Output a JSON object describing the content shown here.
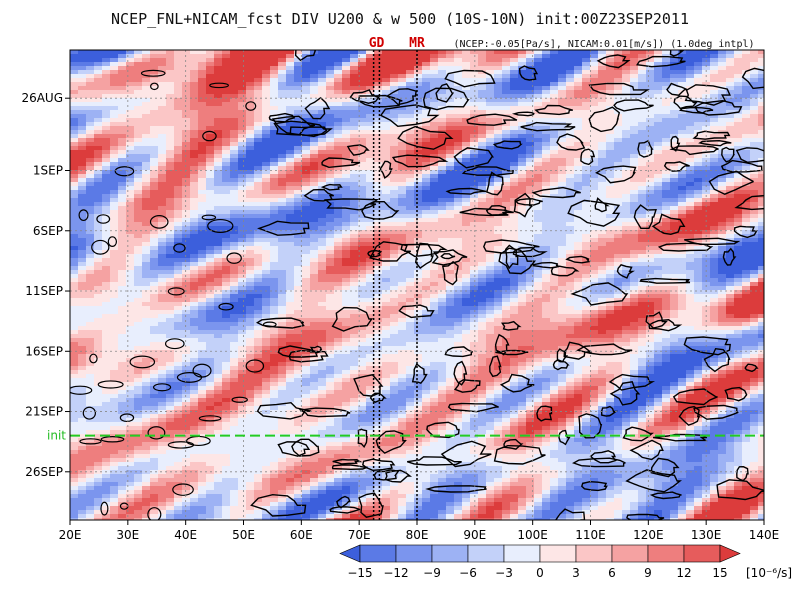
{
  "chart_data": {
    "type": "heatmap",
    "title": "NCEP_FNL+NICAM_fcst DIV U200 & w 500 (10S-10N) init:00Z23SEP2011",
    "subtitle": "(NCEP:-0.05[Pa/s], NICAM:0.01[m/s]) (1.0deg intpl)",
    "x_axis": {
      "range": [
        20,
        140
      ],
      "ticks": [
        "20E",
        "30E",
        "40E",
        "50E",
        "60E",
        "70E",
        "80E",
        "90E",
        "100E",
        "110E",
        "120E",
        "130E",
        "140E"
      ]
    },
    "y_axis": {
      "range": [
        "2011-08-22",
        "2011-09-30"
      ],
      "ticks": [
        {
          "label": "26AUG",
          "date": "2011-08-26"
        },
        {
          "label": "1SEP",
          "date": "2011-09-01"
        },
        {
          "label": "6SEP",
          "date": "2011-09-06"
        },
        {
          "label": "11SEP",
          "date": "2011-09-11"
        },
        {
          "label": "16SEP",
          "date": "2011-09-16"
        },
        {
          "label": "21SEP",
          "date": "2011-09-21"
        },
        {
          "label": "26SEP",
          "date": "2011-09-26"
        }
      ]
    },
    "init_line": {
      "label": "init",
      "date": "2011-09-23",
      "color": "#22cc22"
    },
    "markers": [
      {
        "label": "GD",
        "lon": [
          72.5,
          73.5
        ],
        "color": "#d00000"
      },
      {
        "label": "MR",
        "lon": 80,
        "color": "#d00000"
      }
    ],
    "grid": true,
    "colorbar": {
      "levels": [
        -15,
        -12,
        -9,
        -6,
        -3,
        0,
        3,
        6,
        9,
        12,
        15
      ],
      "tick_labels": [
        "−15",
        "−12",
        "−9",
        "−6",
        "−3",
        "0",
        "3",
        "6",
        "9",
        "12",
        "15"
      ],
      "unit": "[10⁻⁶/s]",
      "colors": [
        "#3c5fdc",
        "#5b7ae6",
        "#7b95ee",
        "#9db2f4",
        "#c3d1f9",
        "#e8eefd",
        "#fde6e6",
        "#fbc6c6",
        "#f5a2a2",
        "#ee7e7e",
        "#e65c5c",
        "#dc3c3c"
      ]
    },
    "field_description": "longitude-time Hovmoller of 200hPa divergence (shaded) with 500hPa vertical velocity contours"
  }
}
